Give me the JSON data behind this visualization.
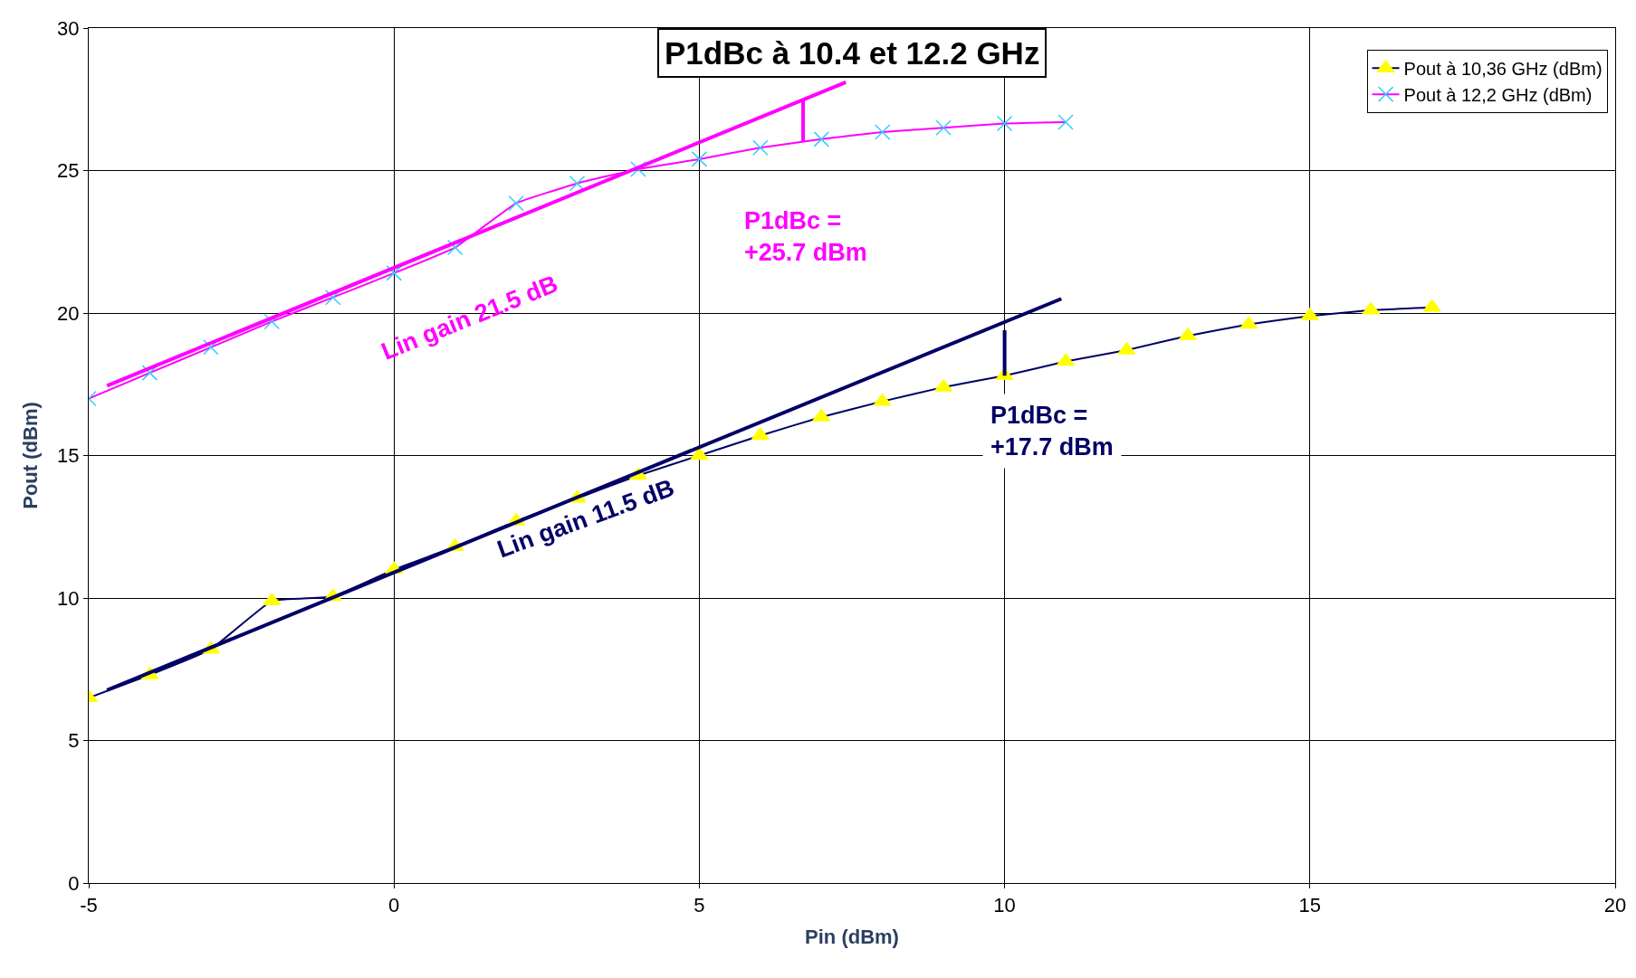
{
  "chart_data": {
    "type": "line",
    "title": "P1dBc à 10.4 et 12.2 GHz",
    "xlabel": "Pin (dBm)",
    "ylabel": "Pout (dBm)",
    "x": [
      -5,
      -4,
      -3,
      -2,
      -1,
      0,
      1,
      2,
      3,
      4,
      5,
      6,
      7,
      8,
      9,
      10,
      11,
      12,
      13,
      14,
      15,
      16,
      17
    ],
    "series": [
      {
        "name": "Pout à 10,36 GHz (dBm)",
        "color": "#000066",
        "marker": "triangle",
        "colors": [
          "#ffff00",
          "#ffff00",
          "#ffff00",
          "#ffff00",
          "#ffff00",
          "#ffff00",
          "#ffff00",
          "#ffff00",
          "#ffff00",
          "#ffff00",
          "#ffff00",
          "#ffff00",
          "#ffff00",
          "#ffff00",
          "#ffff00",
          "#ffff00",
          "#ffff00",
          "#ffff00",
          "#ffff00",
          "#ffff00",
          "#ffff00",
          "#ffff00",
          "#ffff00"
        ],
        "values": [
          6.5,
          7.3,
          8.2,
          9.9,
          10.05,
          11.0,
          11.8,
          12.7,
          13.5,
          14.3,
          15.0,
          15.7,
          16.35,
          16.9,
          17.4,
          17.8,
          18.3,
          18.7,
          19.2,
          19.6,
          19.9,
          20.1,
          20.2
        ]
      },
      {
        "name": "Pout à 12,2 GHz (dBm)",
        "color": "#ff00ff",
        "marker": "cross",
        "colors": [
          "#33ccff",
          "#33ccff",
          "#33ccff",
          "#33ccff",
          "#33ccff",
          "#33ccff",
          "#33ccff",
          "#33ccff",
          "#33ccff",
          "#33ccff",
          "#33ccff",
          "#33ccff",
          "#33ccff",
          "#33ccff",
          "#33ccff",
          "#33ccff",
          "#33ccff"
        ],
        "x": [
          -5,
          -4,
          -3,
          -2,
          -1,
          0,
          1,
          2,
          3,
          4,
          5,
          6,
          7,
          8,
          9,
          10,
          11
        ],
        "values": [
          17.0,
          17.9,
          18.8,
          19.7,
          20.55,
          21.4,
          22.3,
          23.85,
          24.55,
          25.05,
          25.4,
          25.8,
          26.1,
          26.35,
          26.5,
          26.65,
          26.7
        ]
      },
      {
        "color": "#ff00ff",
        "marker": "none",
        "x": [
          -4.7,
          7.4
        ],
        "values": [
          17.45,
          28.1
        ]
      },
      {
        "color": "#000066",
        "marker": "none",
        "x": [
          -4.7,
          10.93
        ],
        "values": [
          6.77,
          20.5
        ]
      },
      {
        "color": "#ff00ff",
        "marker": "none",
        "x": [
          6.7,
          6.7
        ],
        "values": [
          26.0,
          27.5
        ]
      },
      {
        "color": "#000066",
        "marker": "none",
        "x": [
          10,
          10
        ],
        "values": [
          17.8,
          19.4
        ]
      }
    ],
    "annotations": [
      "Lin gain 21.5 dB",
      "P1dBc =\n+25.7 dBm",
      "Lin gain 11.5 dB",
      "P1dBc =\n+17.7 dBm"
    ],
    "xlim": [
      -5,
      20
    ],
    "xticks": [
      -5,
      0,
      5,
      10,
      15,
      20
    ],
    "ylim": [
      0,
      30
    ],
    "yticks": [
      0,
      5,
      10,
      15,
      20,
      25,
      30
    ],
    "grid": true,
    "legend": "top right"
  }
}
